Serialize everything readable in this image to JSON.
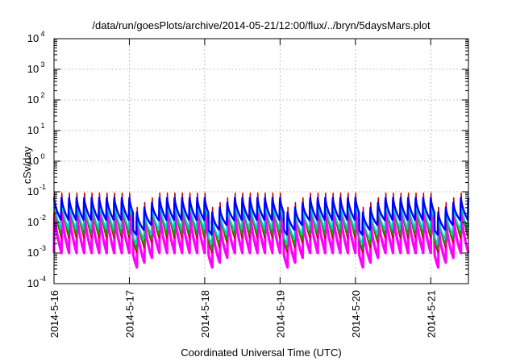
{
  "chart_data": {
    "type": "line",
    "title": "/data/run/goesPlots/archive/2014-05-21/12:00/flux/../bryn/5daysMars.plot",
    "xlabel": "Coordinated Universal Time (UTC)",
    "ylabel": "cSv/day",
    "x_ticks": [
      "2014-5-16",
      "2014-5-17",
      "2014-5-18",
      "2014-5-19",
      "2014-5-20",
      "2014-5-21"
    ],
    "x_range_days": [
      16.0,
      21.5
    ],
    "y_scale": "log",
    "y_ticks": [
      {
        "base": "10",
        "exp": "-4"
      },
      {
        "base": "10",
        "exp": "-3"
      },
      {
        "base": "10",
        "exp": "-2"
      },
      {
        "base": "10",
        "exp": "-1"
      },
      {
        "base": "10",
        "exp": "0"
      },
      {
        "base": "10",
        "exp": "1"
      },
      {
        "base": "10",
        "exp": "2"
      },
      {
        "base": "10",
        "exp": "3"
      },
      {
        "base": "10",
        "exp": "4"
      }
    ],
    "ylim": [
      0.0001,
      10000
    ],
    "grid": true,
    "period_days": 0.1,
    "reset_events": [
      {
        "day": 17.05,
        "min": 0.0005
      },
      {
        "day": 18.05,
        "min": 0.0009
      },
      {
        "day": 19.05,
        "min": 0.0015
      },
      {
        "day": 20.05,
        "min": 0.0012
      },
      {
        "day": 21.05,
        "min": 0.001
      }
    ],
    "series": [
      {
        "color": "#ff00ff",
        "peak": 0.03,
        "trough": 0.001
      },
      {
        "color": "#cc0000",
        "peak": 0.09,
        "trough": 0.003
      },
      {
        "color": "#00aa00",
        "peak": 0.075,
        "trough": 0.004
      },
      {
        "color": "#00cccc",
        "peak": 0.06,
        "trough": 0.006
      },
      {
        "color": "#0000ff",
        "peak": 0.08,
        "trough": 0.012
      }
    ]
  }
}
